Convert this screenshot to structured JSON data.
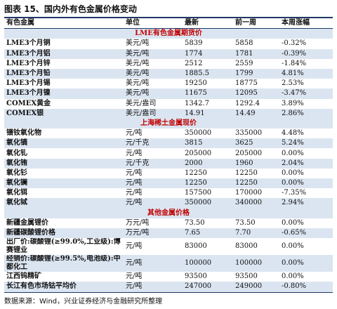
{
  "title": "图表 15、国内外有色金属价格变动",
  "table": {
    "header": [
      "有色金属",
      "单位",
      "最新",
      "前一周",
      "本周涨幅"
    ],
    "sections": [
      {
        "title": "LME有色金属期货价",
        "rows": [
          [
            "LME3个月铜",
            "美元/吨",
            "5839",
            "5858",
            "-0.32%"
          ],
          [
            "LME3个月铝",
            "美元/吨",
            "1774",
            "1781",
            "-0.39%"
          ],
          [
            "LME3个月锌",
            "美元/吨",
            "2512",
            "2559",
            "-1.84%"
          ],
          [
            "LME3个月铅",
            "美元/吨",
            "1885.5",
            "1799",
            "4.81%"
          ],
          [
            "LME3个月锡",
            "美元/吨",
            "19250",
            "18775",
            "2.53%"
          ],
          [
            "LME3个月镍",
            "美元/吨",
            "11675",
            "12095",
            "-3.47%"
          ],
          [
            "COMEX黄金",
            "美元/盎司",
            "1342.7",
            "1292.4",
            "3.89%"
          ],
          [
            "COMEX银",
            "美元/盎司",
            "14.91",
            "14.49",
            "2.86%"
          ]
        ]
      },
      {
        "title": "上海稀土金属现价",
        "rows": [
          [
            "镨钕氧化物",
            "元/吨",
            "350000",
            "335000",
            "4.48%"
          ],
          [
            "氧化镝",
            "元/千克",
            "3815",
            "3625",
            "5.24%"
          ],
          [
            "氧化钆",
            "元/吨",
            "205000",
            "205000",
            "0.00%"
          ],
          [
            "氧化铕",
            "元/千克",
            "2000",
            "1960",
            "2.04%"
          ],
          [
            "氧化钐",
            "元/吨",
            "12250",
            "12250",
            "0.00%"
          ],
          [
            "氧化镧",
            "元/吨",
            "12250",
            "12250",
            "0.00%"
          ],
          [
            "氧化铒",
            "元/吨",
            "157500",
            "170000",
            "-7.35%"
          ],
          [
            "氧化铽",
            "元/吨",
            "350000",
            "340000",
            "2.94%"
          ]
        ]
      },
      {
        "title": "其他金属价格",
        "rows": [
          [
            "新疆金属锂价",
            "万元/吨",
            "73.50",
            "73.50",
            "0.00%"
          ],
          [
            "新疆碳酸锂价格",
            "万元/吨",
            "7.65",
            "7.70",
            "-0.65%"
          ],
          [
            "出厂价:碳酸锂(≥99.0%,工业级):博赛锂业",
            "元/吨",
            "83000",
            "83000",
            "0.00%"
          ],
          [
            "经销价:碳酸锂(≥99.5%,电池级):中都化工",
            "元/吨",
            "100000",
            "100000",
            "0.00%"
          ],
          [
            "江西钨精矿",
            "元/吨",
            "93500",
            "93500",
            "0.00%"
          ],
          [
            "长江有色市场钴平均价",
            "元/吨",
            "247000",
            "249000",
            "-0.80%"
          ]
        ]
      }
    ]
  },
  "source": "数据来源：Wind，兴业证券经济与金融研究所整理"
}
